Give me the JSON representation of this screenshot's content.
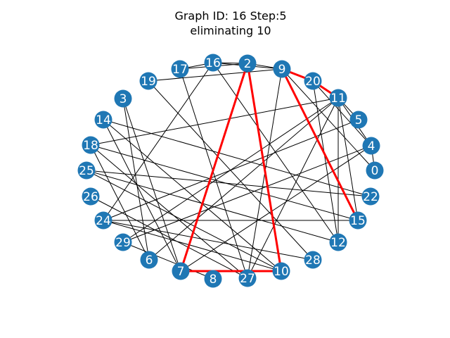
{
  "title": {
    "line1": "Graph ID: 16     Step:5",
    "line2": "eliminating 10"
  },
  "colors": {
    "node": "#1f77b4",
    "edge": "#000000",
    "highlight": "#ff0000",
    "label": "#ffffff"
  },
  "nodes": [
    "0",
    "2",
    "3",
    "4",
    "5",
    "6",
    "7",
    "8",
    "9",
    "10",
    "11",
    "12",
    "14",
    "15",
    "16",
    "17",
    "18",
    "19",
    "20",
    "22",
    "24",
    "25",
    "26",
    "27",
    "28",
    "29"
  ],
  "edges": [
    [
      "16",
      "17"
    ],
    [
      "16",
      "2"
    ],
    [
      "16",
      "9"
    ],
    [
      "16",
      "24"
    ],
    [
      "16",
      "12"
    ],
    [
      "17",
      "2"
    ],
    [
      "17",
      "27"
    ],
    [
      "19",
      "9"
    ],
    [
      "19",
      "28"
    ],
    [
      "3",
      "6"
    ],
    [
      "3",
      "7"
    ],
    [
      "14",
      "7"
    ],
    [
      "14",
      "10"
    ],
    [
      "14",
      "22"
    ],
    [
      "18",
      "6"
    ],
    [
      "18",
      "27"
    ],
    [
      "18",
      "15"
    ],
    [
      "25",
      "10"
    ],
    [
      "25",
      "22"
    ],
    [
      "25",
      "12"
    ],
    [
      "26",
      "27"
    ],
    [
      "24",
      "15"
    ],
    [
      "24",
      "5"
    ],
    [
      "24",
      "28"
    ],
    [
      "24",
      "10"
    ],
    [
      "29",
      "4"
    ],
    [
      "29",
      "11"
    ],
    [
      "29",
      "8"
    ],
    [
      "6",
      "11"
    ],
    [
      "7",
      "4"
    ],
    [
      "27",
      "9"
    ],
    [
      "27",
      "11"
    ],
    [
      "2",
      "9"
    ],
    [
      "9",
      "0"
    ],
    [
      "20",
      "4"
    ],
    [
      "20",
      "12"
    ],
    [
      "11",
      "5"
    ],
    [
      "11",
      "4"
    ],
    [
      "11",
      "15"
    ],
    [
      "11",
      "12"
    ],
    [
      "11",
      "18"
    ],
    [
      "4",
      "0"
    ]
  ],
  "highlight_edges": [
    [
      "2",
      "7"
    ],
    [
      "2",
      "10"
    ],
    [
      "7",
      "10"
    ],
    [
      "9",
      "20"
    ],
    [
      "20",
      "11"
    ],
    [
      "9",
      "15"
    ]
  ]
}
